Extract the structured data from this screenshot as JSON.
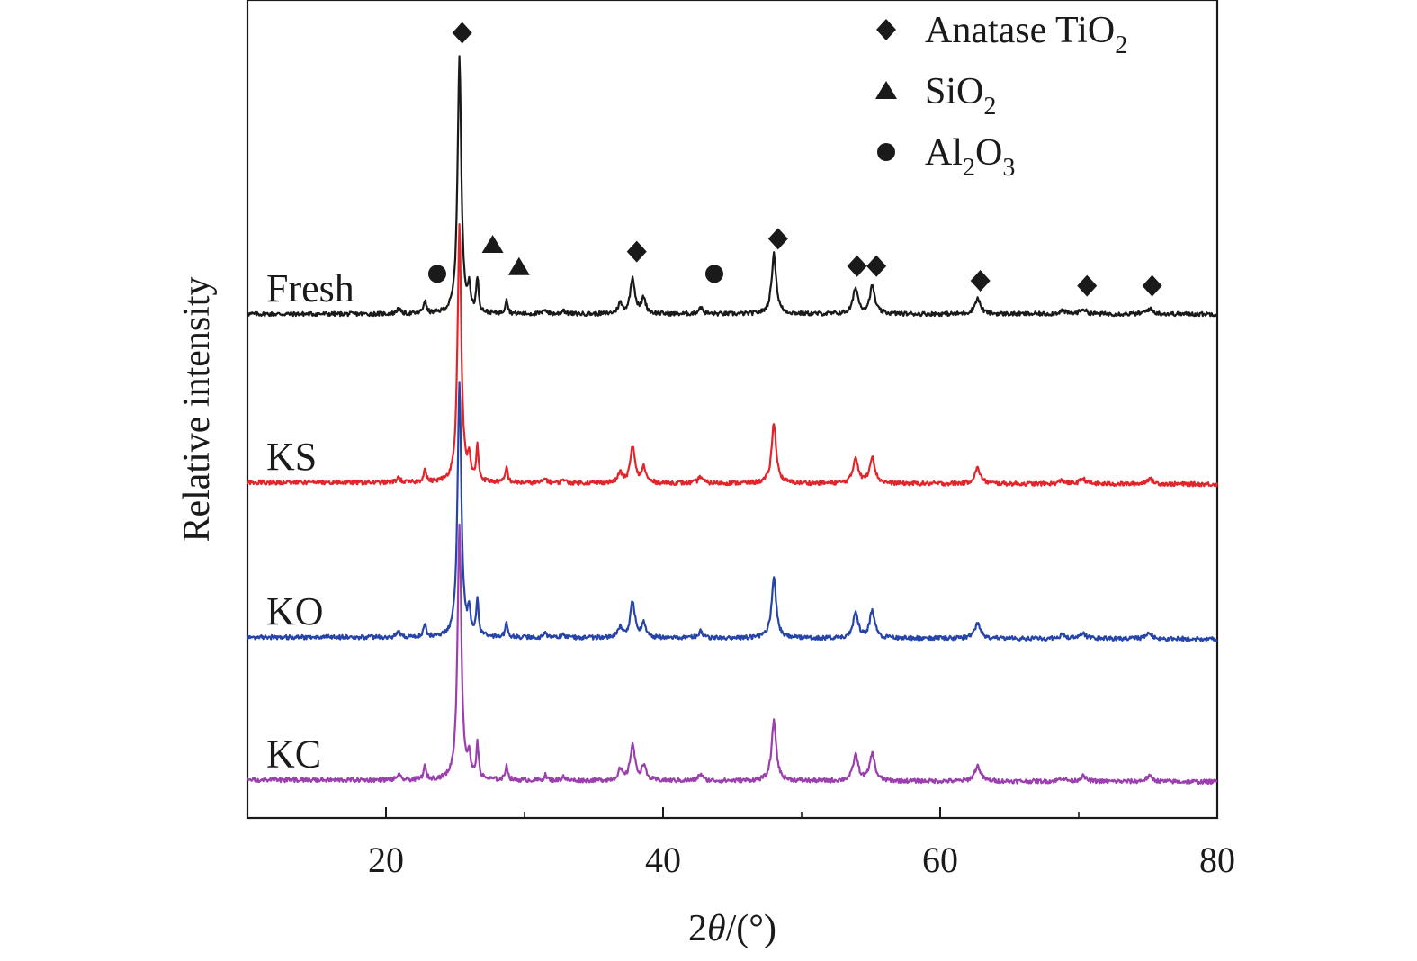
{
  "chart_data": {
    "type": "line",
    "xlabel_parts": {
      "pre": "2",
      "theta": "θ",
      "post": "/(°)"
    },
    "ylabel": "Relative intensity",
    "xlim": [
      10,
      80
    ],
    "xticks": [
      20,
      40,
      60,
      80
    ],
    "yticks_shown": false,
    "grid": false,
    "legend_position": "top-right",
    "legend": [
      {
        "symbol": "diamond",
        "phase": "Anatase TiO2",
        "label_main": "Anatase TiO",
        "label_sub": "2",
        "label_after": ""
      },
      {
        "symbol": "triangle",
        "phase": "SiO2",
        "label_main": "SiO",
        "label_sub": "2",
        "label_after": ""
      },
      {
        "symbol": "circle",
        "phase": "Al2O3",
        "label_main": "Al",
        "label_sub": "2",
        "label_after": "O",
        "label_sub2": "3"
      }
    ],
    "series": [
      {
        "name": "Fresh",
        "color": "#1a1a1a",
        "baseline": 0.0,
        "slope": 0.0
      },
      {
        "name": "KS",
        "color": "#e3242b",
        "baseline": -1.97,
        "slope": -0.0003
      },
      {
        "name": "KO",
        "color": "#2744a8",
        "baseline": -3.78,
        "slope": -0.0003
      },
      {
        "name": "KC",
        "color": "#9b3fae",
        "baseline": -5.45,
        "slope": -0.0003
      }
    ],
    "peaks": [
      {
        "x": 20.9,
        "h": 0.06,
        "w": 0.15
      },
      {
        "x": 22.8,
        "h": 0.15,
        "w": 0.12
      },
      {
        "x": 25.3,
        "h": 3.0,
        "w": 0.16
      },
      {
        "x": 26.0,
        "h": 0.25,
        "w": 0.12
      },
      {
        "x": 26.6,
        "h": 0.4,
        "w": 0.1
      },
      {
        "x": 28.7,
        "h": 0.18,
        "w": 0.1
      },
      {
        "x": 31.5,
        "h": 0.06,
        "w": 0.12
      },
      {
        "x": 32.8,
        "h": 0.05,
        "w": 0.12
      },
      {
        "x": 36.9,
        "h": 0.12,
        "w": 0.18
      },
      {
        "x": 37.8,
        "h": 0.42,
        "w": 0.2
      },
      {
        "x": 38.6,
        "h": 0.18,
        "w": 0.18
      },
      {
        "x": 42.7,
        "h": 0.08,
        "w": 0.18
      },
      {
        "x": 48.0,
        "h": 0.7,
        "w": 0.2
      },
      {
        "x": 53.9,
        "h": 0.3,
        "w": 0.22
      },
      {
        "x": 55.1,
        "h": 0.32,
        "w": 0.22
      },
      {
        "x": 62.7,
        "h": 0.18,
        "w": 0.25
      },
      {
        "x": 68.8,
        "h": 0.04,
        "w": 0.25
      },
      {
        "x": 70.3,
        "h": 0.06,
        "w": 0.25
      },
      {
        "x": 75.1,
        "h": 0.06,
        "w": 0.28
      }
    ],
    "markers": [
      {
        "symbol": "diamond",
        "x": 25.5,
        "y": 3.29
      },
      {
        "symbol": "triangle",
        "x": 27.7,
        "y": 0.81
      },
      {
        "symbol": "triangle",
        "x": 29.6,
        "y": 0.55
      },
      {
        "symbol": "circle",
        "x": 23.7,
        "y": 0.47
      },
      {
        "symbol": "circle",
        "x": 43.7,
        "y": 0.47
      },
      {
        "symbol": "diamond",
        "x": 38.1,
        "y": 0.73
      },
      {
        "symbol": "diamond",
        "x": 48.3,
        "y": 0.88
      },
      {
        "symbol": "diamond",
        "x": 54.0,
        "y": 0.56
      },
      {
        "symbol": "diamond",
        "x": 55.4,
        "y": 0.56
      },
      {
        "symbol": "diamond",
        "x": 62.9,
        "y": 0.39
      },
      {
        "symbol": "diamond",
        "x": 70.6,
        "y": 0.33
      },
      {
        "symbol": "diamond",
        "x": 75.3,
        "y": 0.33
      }
    ]
  }
}
